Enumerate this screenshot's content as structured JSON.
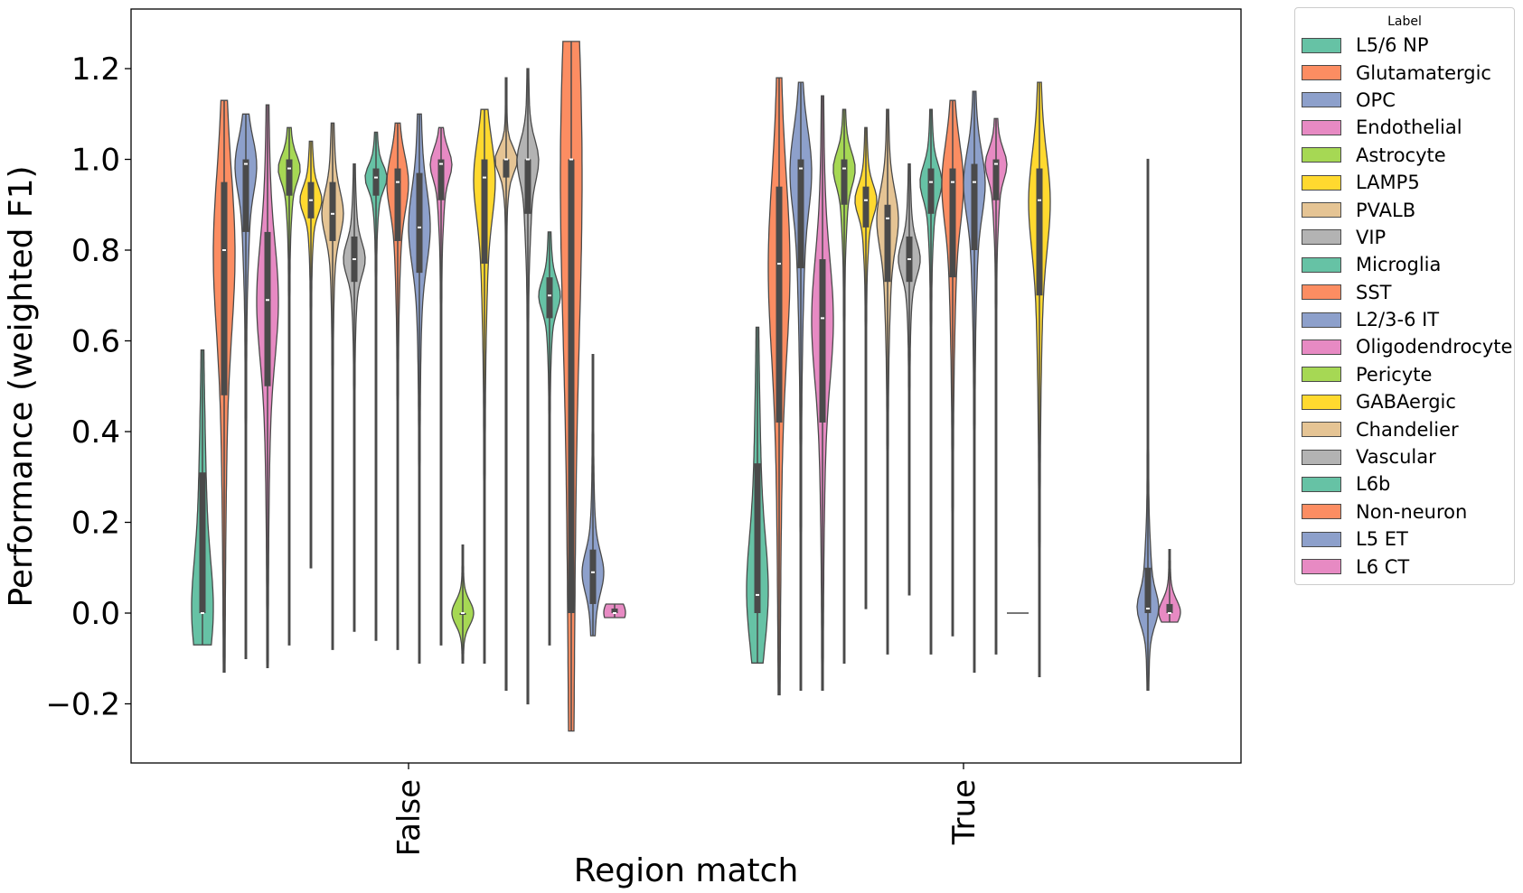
{
  "chart_data": {
    "type": "violin",
    "xlabel": "Region match",
    "ylabel": "Performance (weighted F1)",
    "categories": [
      "False",
      "True"
    ],
    "ylim": [
      -0.33,
      1.33
    ],
    "yticks": [
      -0.2,
      0.0,
      0.2,
      0.4,
      0.6,
      0.8,
      1.0,
      1.2
    ],
    "ytick_labels": [
      "−0.2",
      "0.0",
      "0.2",
      "0.4",
      "0.6",
      "0.8",
      "1.0",
      "1.2"
    ],
    "grid": false,
    "legend": {
      "title": "Label",
      "placement": "outside-right"
    },
    "series": [
      {
        "name": "L5/6 NP",
        "color": "#66c2a5",
        "False": {
          "min": -0.07,
          "q1": 0.0,
          "median": 0.0,
          "q3": 0.31,
          "max": 0.58
        },
        "True": {
          "min": -0.11,
          "q1": 0.0,
          "median": 0.04,
          "q3": 0.33,
          "max": 0.63
        }
      },
      {
        "name": "Glutamatergic",
        "color": "#fc8d62",
        "False": {
          "min": -0.13,
          "q1": 0.48,
          "median": 0.8,
          "q3": 0.95,
          "max": 1.13
        },
        "True": {
          "min": -0.18,
          "q1": 0.42,
          "median": 0.77,
          "q3": 0.94,
          "max": 1.18
        }
      },
      {
        "name": "OPC",
        "color": "#8da0cb",
        "False": {
          "min": -0.1,
          "q1": 0.84,
          "median": 0.99,
          "q3": 1.0,
          "max": 1.1
        },
        "True": {
          "min": -0.17,
          "q1": 0.76,
          "median": 0.98,
          "q3": 1.0,
          "max": 1.17
        }
      },
      {
        "name": "Endothelial",
        "color": "#e78ac3",
        "False": {
          "min": -0.12,
          "q1": 0.5,
          "median": 0.69,
          "q3": 0.84,
          "max": 1.12
        },
        "True": {
          "min": -0.17,
          "q1": 0.42,
          "median": 0.65,
          "q3": 0.78,
          "max": 1.14
        }
      },
      {
        "name": "Astrocyte",
        "color": "#a6d854",
        "False": {
          "min": -0.07,
          "q1": 0.92,
          "median": 0.98,
          "q3": 1.0,
          "max": 1.07
        },
        "True": {
          "min": -0.11,
          "q1": 0.9,
          "median": 0.98,
          "q3": 1.0,
          "max": 1.11
        }
      },
      {
        "name": "LAMP5",
        "color": "#ffd92f",
        "False": {
          "min": 0.1,
          "q1": 0.87,
          "median": 0.91,
          "q3": 0.95,
          "max": 1.04
        },
        "True": {
          "min": 0.01,
          "q1": 0.85,
          "median": 0.91,
          "q3": 0.94,
          "max": 1.07
        }
      },
      {
        "name": "PVALB",
        "color": "#e5c494",
        "False": {
          "min": -0.08,
          "q1": 0.82,
          "median": 0.88,
          "q3": 0.95,
          "max": 1.08
        },
        "True": {
          "min": -0.09,
          "q1": 0.73,
          "median": 0.87,
          "q3": 0.9,
          "max": 1.11
        }
      },
      {
        "name": "VIP",
        "color": "#b3b3b3",
        "False": {
          "min": -0.04,
          "q1": 0.73,
          "median": 0.78,
          "q3": 0.83,
          "max": 0.99
        },
        "True": {
          "min": 0.04,
          "q1": 0.73,
          "median": 0.78,
          "q3": 0.83,
          "max": 0.99
        }
      },
      {
        "name": "Microglia",
        "color": "#66c2a5",
        "False": {
          "min": -0.06,
          "q1": 0.92,
          "median": 0.96,
          "q3": 0.98,
          "max": 1.06
        },
        "True": {
          "min": -0.09,
          "q1": 0.88,
          "median": 0.95,
          "q3": 0.98,
          "max": 1.11
        }
      },
      {
        "name": "SST",
        "color": "#fc8d62",
        "False": {
          "min": -0.08,
          "q1": 0.82,
          "median": 0.95,
          "q3": 0.98,
          "max": 1.08
        },
        "True": {
          "min": -0.05,
          "q1": 0.74,
          "median": 0.95,
          "q3": 0.98,
          "max": 1.13
        }
      },
      {
        "name": "L2/3-6 IT",
        "color": "#8da0cb",
        "False": {
          "min": -0.11,
          "q1": 0.75,
          "median": 0.85,
          "q3": 0.97,
          "max": 1.1
        },
        "True": {
          "min": -0.13,
          "q1": 0.8,
          "median": 0.95,
          "q3": 0.99,
          "max": 1.15
        }
      },
      {
        "name": "Oligodendrocyte",
        "color": "#e78ac3",
        "False": {
          "min": -0.07,
          "q1": 0.91,
          "median": 0.99,
          "q3": 1.0,
          "max": 1.07
        },
        "True": {
          "min": -0.09,
          "q1": 0.91,
          "median": 0.99,
          "q3": 1.0,
          "max": 1.09
        }
      },
      {
        "name": "Pericyte",
        "color": "#a6d854",
        "False": {
          "min": -0.11,
          "q1": 0.0,
          "median": 0.0,
          "q3": 0.0,
          "max": 0.15
        },
        "True": {
          "min": 0.0,
          "q1": 0.0,
          "median": 0.0,
          "q3": 0.0,
          "max": 0.0
        }
      },
      {
        "name": "GABAergic",
        "color": "#ffd92f",
        "False": {
          "min": -0.11,
          "q1": 0.77,
          "median": 0.96,
          "q3": 1.0,
          "max": 1.11
        },
        "True": {
          "min": -0.14,
          "q1": 0.7,
          "median": 0.91,
          "q3": 0.98,
          "max": 1.17
        }
      },
      {
        "name": "Chandelier",
        "color": "#e5c494",
        "False": {
          "min": -0.17,
          "q1": 0.96,
          "median": 1.0,
          "q3": 1.0,
          "max": 1.18
        },
        "True": null
      },
      {
        "name": "Vascular",
        "color": "#b3b3b3",
        "False": {
          "min": -0.2,
          "q1": 0.88,
          "median": 1.0,
          "q3": 1.0,
          "max": 1.2
        },
        "True": null
      },
      {
        "name": "L6b",
        "color": "#66c2a5",
        "False": {
          "min": -0.07,
          "q1": 0.65,
          "median": 0.7,
          "q3": 0.74,
          "max": 0.84
        },
        "True": null
      },
      {
        "name": "Non-neuron",
        "color": "#fc8d62",
        "False": {
          "min": -0.26,
          "q1": 0.0,
          "median": 1.0,
          "q3": 1.0,
          "max": 1.26
        },
        "True": null
      },
      {
        "name": "L5 ET",
        "color": "#8da0cb",
        "False": {
          "min": -0.05,
          "q1": 0.02,
          "median": 0.09,
          "q3": 0.14,
          "max": 0.57
        },
        "True": {
          "min": -0.17,
          "q1": 0.0,
          "median": 0.01,
          "q3": 0.1,
          "max": 1.0
        }
      },
      {
        "name": "L6 CT",
        "color": "#e78ac3",
        "False": {
          "min": -0.01,
          "q1": 0.0,
          "median": 0.0,
          "q3": 0.01,
          "max": 0.02
        },
        "True": {
          "min": -0.02,
          "q1": 0.0,
          "median": 0.0,
          "q3": 0.02,
          "max": 0.14
        }
      }
    ]
  }
}
